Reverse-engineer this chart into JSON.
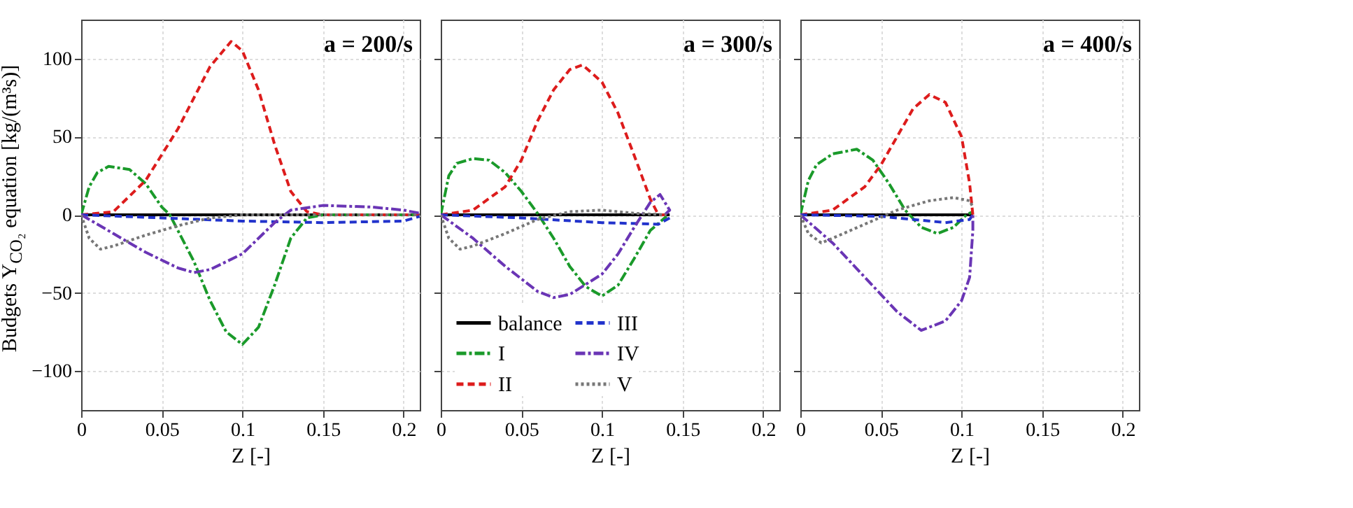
{
  "chart_data": [
    {
      "type": "line",
      "ylabel": "Budgets Y$_{CO₂}$ equation [kg/(m³s)]",
      "xlabel": "Z [-]",
      "annotations": [
        "a = 200/s"
      ],
      "xlim": [
        0,
        0.21
      ],
      "ylim": [
        -125,
        125
      ],
      "xticks": [
        0,
        0.05,
        0.1,
        0.15,
        0.2
      ],
      "yticks": [
        -100,
        -50,
        0,
        50,
        100
      ],
      "grid": true,
      "legend": false,
      "series": [
        {
          "color": "#000000",
          "line_style": "solid",
          "x": [
            0,
            0.21
          ],
          "values": [
            0,
            0
          ]
        },
        {
          "color": "#1a9a2a",
          "line_style": "dashdot",
          "x": [
            0,
            0.005,
            0.01,
            0.017,
            0.03,
            0.04,
            0.05,
            0.055,
            0.07,
            0.08,
            0.09,
            0.1,
            0.11,
            0.12,
            0.13,
            0.14,
            0.15,
            0.21
          ],
          "values": [
            0,
            18,
            27,
            31,
            29,
            20,
            5,
            0,
            -30,
            -55,
            -75,
            -83,
            -72,
            -45,
            -15,
            -2,
            0,
            0
          ]
        },
        {
          "color": "#dd1c1c",
          "line_style": "dashed",
          "x": [
            0,
            0.02,
            0.04,
            0.06,
            0.08,
            0.093,
            0.1,
            0.11,
            0.12,
            0.13,
            0.14,
            0.15,
            0.21
          ],
          "values": [
            0,
            2,
            22,
            55,
            95,
            111,
            105,
            80,
            45,
            15,
            2,
            0,
            0
          ]
        },
        {
          "color": "#2233cc",
          "line_style": "dashed",
          "x": [
            0,
            0.05,
            0.1,
            0.15,
            0.2,
            0.21
          ],
          "values": [
            0,
            -2,
            -4,
            -5,
            -4,
            -1
          ]
        },
        {
          "color": "#6a35b5",
          "line_style": "dashdot",
          "x": [
            0,
            0.02,
            0.04,
            0.06,
            0.07,
            0.08,
            0.1,
            0.11,
            0.12,
            0.13,
            0.15,
            0.18,
            0.2,
            0.21
          ],
          "values": [
            0,
            -12,
            -24,
            -34,
            -37,
            -35,
            -25,
            -15,
            -5,
            3,
            6,
            5,
            3,
            1
          ]
        },
        {
          "color": "#777777",
          "line_style": "dotted",
          "x": [
            0,
            0.005,
            0.012,
            0.02,
            0.04,
            0.06,
            0.08,
            0.1,
            0.15,
            0.21
          ],
          "values": [
            0,
            -15,
            -22,
            -20,
            -13,
            -7,
            -2,
            0,
            0,
            0
          ]
        }
      ]
    },
    {
      "type": "line",
      "xlabel": "Z [-]",
      "annotations": [
        "a = 300/s"
      ],
      "xlim": [
        0,
        0.21
      ],
      "ylim": [
        -125,
        125
      ],
      "xticks": [
        0,
        0.05,
        0.1,
        0.15,
        0.2
      ],
      "yticks": [
        -100,
        -50,
        0,
        50,
        100
      ],
      "grid": true,
      "legend": "bottom",
      "tick_labels": "x",
      "series": [
        {
          "name": "balance",
          "color": "#000000",
          "line_style": "solid",
          "x": [
            0,
            0.142
          ],
          "values": [
            0,
            0
          ]
        },
        {
          "name": "I",
          "color": "#1a9a2a",
          "line_style": "dashdot",
          "x": [
            0,
            0.005,
            0.01,
            0.02,
            0.03,
            0.04,
            0.05,
            0.06,
            0.07,
            0.08,
            0.09,
            0.1,
            0.11,
            0.12,
            0.13,
            0.14
          ],
          "values": [
            0,
            25,
            33,
            36,
            35,
            27,
            15,
            1,
            -15,
            -33,
            -46,
            -52,
            -45,
            -28,
            -10,
            -1
          ]
        },
        {
          "name": "II",
          "color": "#dd1c1c",
          "line_style": "dashed",
          "x": [
            0,
            0.02,
            0.04,
            0.05,
            0.06,
            0.07,
            0.08,
            0.088,
            0.1,
            0.11,
            0.12,
            0.13,
            0.135,
            0.14
          ],
          "values": [
            0,
            3,
            18,
            35,
            60,
            80,
            93,
            96,
            85,
            65,
            38,
            10,
            0,
            0
          ]
        },
        {
          "name": "III",
          "color": "#2233cc",
          "line_style": "dashed",
          "x": [
            0,
            0.05,
            0.1,
            0.135,
            0.142
          ],
          "values": [
            0,
            -2,
            -5,
            -6,
            -2
          ]
        },
        {
          "name": "IV",
          "color": "#6a35b5",
          "line_style": "dashdot",
          "x": [
            0,
            0.02,
            0.04,
            0.06,
            0.07,
            0.08,
            0.1,
            0.11,
            0.12,
            0.13,
            0.136,
            0.142,
            0.138
          ],
          "values": [
            0,
            -15,
            -33,
            -49,
            -53,
            -51,
            -38,
            -25,
            -8,
            8,
            13,
            3,
            -1
          ]
        },
        {
          "name": "V",
          "color": "#777777",
          "line_style": "dotted",
          "x": [
            0,
            0.005,
            0.012,
            0.02,
            0.04,
            0.06,
            0.08,
            0.1,
            0.12,
            0.14
          ],
          "values": [
            0,
            -15,
            -22,
            -20,
            -12,
            -3,
            2,
            3,
            1,
            0
          ]
        }
      ]
    },
    {
      "type": "line",
      "xlabel": "Z [-]",
      "annotations": [
        "a = 400/s"
      ],
      "xlim": [
        0,
        0.21
      ],
      "ylim": [
        -125,
        125
      ],
      "xticks": [
        0,
        0.05,
        0.1,
        0.15,
        0.2
      ],
      "yticks": [
        -100,
        -50,
        0,
        50,
        100
      ],
      "grid": true,
      "legend": false,
      "tick_labels": "x",
      "series": [
        {
          "color": "#000000",
          "line_style": "solid",
          "x": [
            0,
            0.107
          ],
          "values": [
            0,
            0
          ]
        },
        {
          "color": "#1a9a2a",
          "line_style": "dashdot",
          "x": [
            0,
            0.005,
            0.01,
            0.02,
            0.035,
            0.045,
            0.055,
            0.065,
            0.075,
            0.085,
            0.095,
            0.103,
            0.107
          ],
          "values": [
            0,
            22,
            32,
            39,
            42,
            35,
            20,
            3,
            -8,
            -12,
            -8,
            0,
            2
          ]
        },
        {
          "color": "#dd1c1c",
          "line_style": "dashed",
          "x": [
            0,
            0.02,
            0.04,
            0.05,
            0.06,
            0.07,
            0.08,
            0.09,
            0.1,
            0.105,
            0.107
          ],
          "values": [
            0,
            3,
            18,
            32,
            50,
            68,
            77,
            72,
            50,
            20,
            0
          ]
        },
        {
          "color": "#2233cc",
          "line_style": "dashed",
          "x": [
            0,
            0.05,
            0.09,
            0.105,
            0.107
          ],
          "values": [
            0,
            -1,
            -5,
            -3,
            0
          ]
        },
        {
          "color": "#6a35b5",
          "line_style": "dashdot",
          "x": [
            0,
            0.02,
            0.04,
            0.06,
            0.075,
            0.09,
            0.1,
            0.105,
            0.107,
            0.107
          ],
          "values": [
            0,
            -18,
            -40,
            -62,
            -74,
            -68,
            -55,
            -40,
            -10,
            0
          ]
        },
        {
          "color": "#777777",
          "line_style": "dotted",
          "x": [
            0,
            0.005,
            0.013,
            0.02,
            0.04,
            0.06,
            0.08,
            0.095,
            0.105,
            0.107
          ],
          "values": [
            0,
            -12,
            -18,
            -15,
            -6,
            3,
            9,
            11,
            9,
            5
          ]
        }
      ]
    }
  ]
}
